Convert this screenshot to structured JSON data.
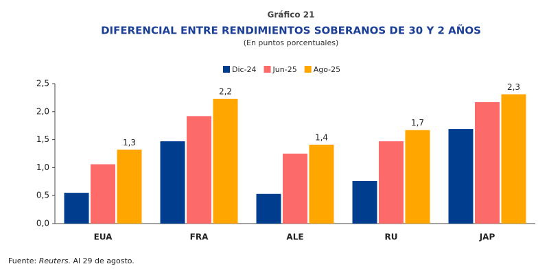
{
  "chart_data": {
    "type": "bar",
    "kicker": "Gráfico 21",
    "title": "DIFERENCIAL ENTRE RENDIMIENTOS SOBERANOS DE 30 Y 2 AÑOS",
    "subtitle": "(En puntos porcentuales)",
    "categories": [
      "EUA",
      "FRA",
      "ALE",
      "RU",
      "JAP"
    ],
    "series": [
      {
        "name": "Dic-24",
        "color": "#003d8f",
        "values": [
          0.55,
          1.47,
          0.53,
          0.76,
          1.69
        ]
      },
      {
        "name": "Jun-25",
        "color": "#fd6a6a",
        "values": [
          1.06,
          1.92,
          1.25,
          1.47,
          2.17
        ]
      },
      {
        "name": "Ago-25",
        "color": "#ffa600",
        "values": [
          1.32,
          2.23,
          1.41,
          1.67,
          2.31
        ],
        "value_labels": [
          "1,3",
          "2,2",
          "1,4",
          "1,7",
          "2,3"
        ]
      }
    ],
    "ylim": [
      0,
      2.5
    ],
    "yticks": [
      {
        "value": 0,
        "label": "0,0"
      },
      {
        "value": 0.5,
        "label": "0,5"
      },
      {
        "value": 1,
        "label": "1,0"
      },
      {
        "value": 1.5,
        "label": "1,5"
      },
      {
        "value": 2,
        "label": "2,0"
      },
      {
        "value": 2.5,
        "label": "2,5"
      }
    ],
    "grid": false,
    "legend": "top",
    "source": {
      "prefix": "Fuente:",
      "publisher": "Reuters.",
      "note": "Al 29 de agosto."
    }
  }
}
